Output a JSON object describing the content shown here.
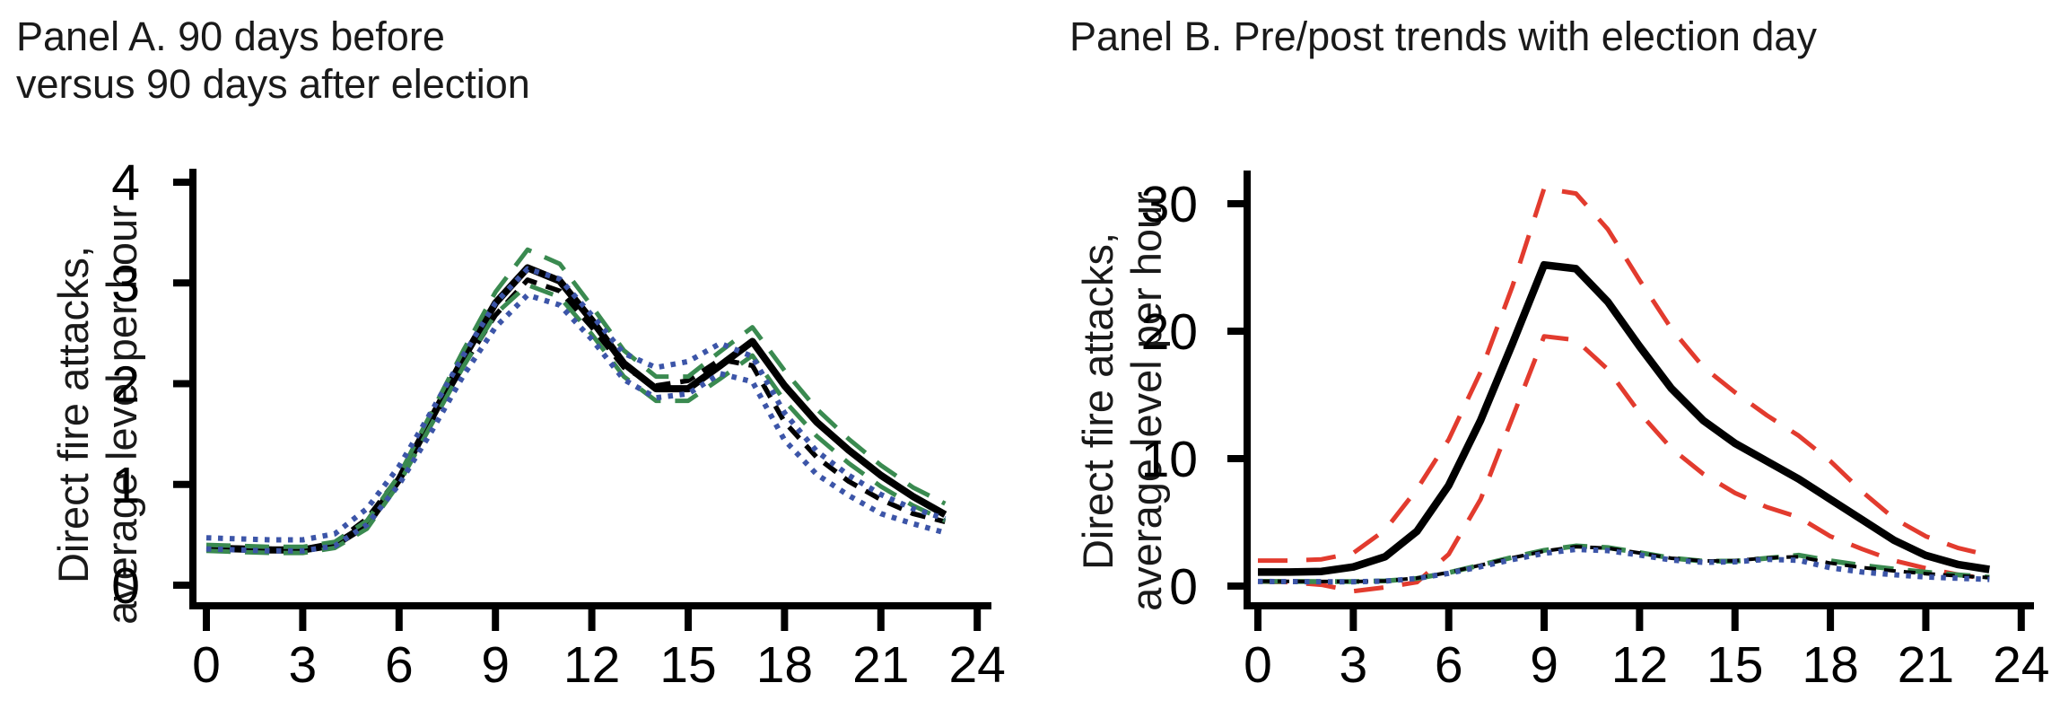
{
  "figure": {
    "background": "#ffffff",
    "axis_color": "#000000",
    "accent_colors": {
      "pre_green": "#3a8a50",
      "post_blue": "#3c55a8",
      "election_red": "#e23b2e",
      "mean_black": "#000000"
    }
  },
  "chart_data": [
    {
      "type": "line",
      "panel": "A",
      "title_line1": "Panel A. 90 days before",
      "title_line2": "versus 90 days after election",
      "ylabel_line1": "Direct fire attacks,",
      "ylabel_line2": "average level per hour",
      "x": [
        0,
        1,
        2,
        3,
        4,
        5,
        6,
        7,
        8,
        9,
        10,
        11,
        12,
        13,
        14,
        15,
        16,
        17,
        18,
        19,
        20,
        21,
        22,
        23
      ],
      "xlim": [
        0,
        24
      ],
      "ylim": [
        0,
        4
      ],
      "xticks": [
        0,
        3,
        6,
        9,
        12,
        15,
        18,
        21,
        24
      ],
      "yticks": [
        0,
        1,
        2,
        3,
        4
      ],
      "grid": false,
      "legend": "none",
      "series": [
        {
          "name": "before-election-mean",
          "color": "#000000",
          "style": "solid",
          "width": 8,
          "values": [
            0.37,
            0.36,
            0.35,
            0.35,
            0.4,
            0.6,
            1.05,
            1.65,
            2.25,
            2.8,
            3.15,
            3.02,
            2.63,
            2.2,
            1.95,
            1.95,
            2.18,
            2.42,
            1.98,
            1.62,
            1.34,
            1.09,
            0.88,
            0.7
          ]
        },
        {
          "name": "after-election-mean",
          "color": "#000000",
          "style": "dash",
          "width": 5.5,
          "values": [
            0.38,
            0.37,
            0.36,
            0.36,
            0.42,
            0.66,
            1.08,
            1.62,
            2.18,
            2.68,
            3.03,
            2.92,
            2.56,
            2.16,
            1.98,
            2.03,
            2.24,
            2.18,
            1.62,
            1.27,
            1.03,
            0.85,
            0.71,
            0.63
          ]
        },
        {
          "name": "before-ci-upper",
          "color": "#3a8a50",
          "style": "longdash",
          "width": 5,
          "values": [
            0.4,
            0.39,
            0.38,
            0.38,
            0.43,
            0.64,
            1.09,
            1.71,
            2.33,
            2.91,
            3.33,
            3.19,
            2.77,
            2.33,
            2.07,
            2.07,
            2.32,
            2.56,
            2.13,
            1.75,
            1.45,
            1.19,
            0.97,
            0.81
          ]
        },
        {
          "name": "before-ci-lower",
          "color": "#3a8a50",
          "style": "longdash",
          "width": 5,
          "values": [
            0.34,
            0.33,
            0.32,
            0.32,
            0.37,
            0.56,
            1.01,
            1.59,
            2.17,
            2.69,
            2.98,
            2.86,
            2.49,
            2.07,
            1.83,
            1.83,
            2.05,
            2.28,
            1.83,
            1.48,
            1.21,
            0.98,
            0.79,
            0.64
          ]
        },
        {
          "name": "after-ci-upper",
          "color": "#3c55a8",
          "style": "dot",
          "width": 6,
          "values": [
            0.47,
            0.46,
            0.45,
            0.45,
            0.51,
            0.76,
            1.18,
            1.72,
            2.28,
            2.8,
            3.14,
            3.04,
            2.68,
            2.3,
            2.16,
            2.22,
            2.4,
            2.27,
            1.71,
            1.33,
            1.09,
            0.9,
            0.76,
            0.66
          ]
        },
        {
          "name": "after-ci-lower",
          "color": "#3c55a8",
          "style": "dot",
          "width": 6,
          "values": [
            0.36,
            0.35,
            0.34,
            0.34,
            0.39,
            0.6,
            1.0,
            1.52,
            2.08,
            2.56,
            2.88,
            2.78,
            2.44,
            2.04,
            1.86,
            1.9,
            2.1,
            2.02,
            1.44,
            1.1,
            0.89,
            0.71,
            0.61,
            0.52
          ]
        }
      ]
    },
    {
      "type": "line",
      "panel": "B",
      "title_line1": "Panel B. Pre/post trends with election day",
      "title_line2": "",
      "ylabel_line1": "Direct fire attacks,",
      "ylabel_line2": "average level per hour",
      "x": [
        0,
        1,
        2,
        3,
        4,
        5,
        6,
        7,
        8,
        9,
        10,
        11,
        12,
        13,
        14,
        15,
        16,
        17,
        18,
        19,
        20,
        21,
        22,
        23
      ],
      "xlim": [
        0,
        24
      ],
      "ylim": [
        0,
        32
      ],
      "xticks": [
        0,
        3,
        6,
        9,
        12,
        15,
        18,
        21,
        24
      ],
      "yticks": [
        0,
        10,
        20,
        30
      ],
      "grid": false,
      "legend": "none",
      "series": [
        {
          "name": "election-day-ci-upper",
          "color": "#e23b2e",
          "style": "longdash-lg",
          "width": 5,
          "values": [
            2.0,
            2.0,
            2.1,
            2.6,
            4.4,
            7.6,
            11.5,
            16.8,
            23.5,
            31.2,
            30.8,
            28.0,
            24.0,
            20.2,
            17.2,
            15.2,
            13.4,
            11.8,
            9.8,
            7.4,
            5.3,
            3.9,
            3.0,
            2.4
          ]
        },
        {
          "name": "election-day-ci-lower",
          "color": "#e23b2e",
          "style": "longdash-lg",
          "width": 5,
          "values": [
            0.35,
            0.3,
            0.1,
            -0.4,
            -0.1,
            0.3,
            2.5,
            6.8,
            13.2,
            19.6,
            19.3,
            17.0,
            13.6,
            10.8,
            8.8,
            7.3,
            6.2,
            5.4,
            3.9,
            2.9,
            2.0,
            1.4,
            0.9,
            0.55
          ]
        },
        {
          "name": "election-day-mean",
          "color": "#000000",
          "style": "solid",
          "width": 8.5,
          "values": [
            1.1,
            1.1,
            1.15,
            1.5,
            2.3,
            4.3,
            7.9,
            13.0,
            19.0,
            25.2,
            24.9,
            22.3,
            18.8,
            15.5,
            13.0,
            11.2,
            9.8,
            8.4,
            6.8,
            5.2,
            3.6,
            2.4,
            1.7,
            1.3
          ]
        },
        {
          "name": "pre-election-trend",
          "color": "#3a8a50",
          "style": "longdash",
          "width": 5.5,
          "values": [
            0.37,
            0.36,
            0.35,
            0.35,
            0.4,
            0.6,
            1.05,
            1.65,
            2.25,
            2.8,
            3.15,
            3.02,
            2.63,
            2.2,
            1.95,
            1.95,
            2.18,
            2.42,
            1.98,
            1.62,
            1.34,
            1.09,
            0.88,
            0.7
          ]
        },
        {
          "name": "pre-post-mid-trend",
          "color": "#000000",
          "style": "thindash",
          "width": 4,
          "values": [
            0.38,
            0.37,
            0.36,
            0.36,
            0.41,
            0.63,
            1.07,
            1.64,
            2.22,
            2.74,
            3.09,
            2.97,
            2.6,
            2.18,
            1.97,
            1.99,
            2.21,
            2.3,
            1.8,
            1.45,
            1.19,
            0.97,
            0.8,
            0.67
          ]
        },
        {
          "name": "post-election-trend",
          "color": "#3c55a8",
          "style": "dot",
          "width": 6,
          "values": [
            0.36,
            0.35,
            0.34,
            0.34,
            0.39,
            0.6,
            1.0,
            1.52,
            2.08,
            2.56,
            2.88,
            2.78,
            2.44,
            2.04,
            1.86,
            1.9,
            2.1,
            2.02,
            1.44,
            1.1,
            0.89,
            0.71,
            0.61,
            0.52
          ]
        }
      ]
    }
  ]
}
